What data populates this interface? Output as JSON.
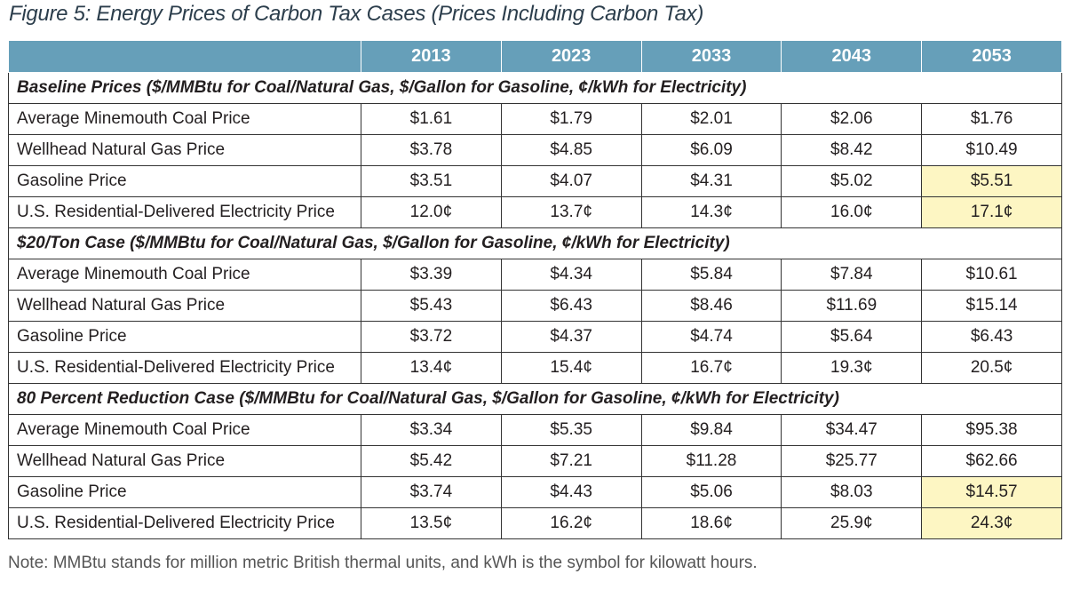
{
  "title": "Figure 5: Energy Prices of Carbon Tax Cases (Prices Including Carbon Tax)",
  "years": [
    "2013",
    "2023",
    "2033",
    "2043",
    "2053"
  ],
  "sections": [
    {
      "heading": "Baseline Prices ($/MMBtu for Coal/Natural Gas, $/Gallon for Gasoline, ¢/kWh for Electricity)",
      "rows": [
        {
          "label": "Average Minemouth Coal Price",
          "values": [
            "$1.61",
            "$1.79",
            "$2.01",
            "$2.06",
            "$1.76"
          ],
          "highlight_last": false
        },
        {
          "label": "Wellhead Natural Gas Price",
          "values": [
            "$3.78",
            "$4.85",
            "$6.09",
            "$8.42",
            "$10.49"
          ],
          "highlight_last": false
        },
        {
          "label": "Gasoline Price",
          "values": [
            "$3.51",
            "$4.07",
            "$4.31",
            "$5.02",
            "$5.51"
          ],
          "highlight_last": true
        },
        {
          "label": "U.S. Residential-Delivered Electricity Price",
          "values": [
            "12.0¢",
            "13.7¢",
            "14.3¢",
            "16.0¢",
            "17.1¢"
          ],
          "highlight_last": true
        }
      ]
    },
    {
      "heading": "$20/Ton Case ($/MMBtu for Coal/Natural Gas, $/Gallon for Gasoline, ¢/kWh for Electricity)",
      "rows": [
        {
          "label": "Average Minemouth Coal Price",
          "values": [
            "$3.39",
            "$4.34",
            "$5.84",
            "$7.84",
            "$10.61"
          ],
          "highlight_last": false
        },
        {
          "label": "Wellhead Natural Gas Price",
          "values": [
            "$5.43",
            "$6.43",
            "$8.46",
            "$11.69",
            "$15.14"
          ],
          "highlight_last": false
        },
        {
          "label": "Gasoline Price",
          "values": [
            "$3.72",
            "$4.37",
            "$4.74",
            "$5.64",
            "$6.43"
          ],
          "highlight_last": false
        },
        {
          "label": "U.S. Residential-Delivered Electricity Price",
          "values": [
            "13.4¢",
            "15.4¢",
            "16.7¢",
            "19.3¢",
            "20.5¢"
          ],
          "highlight_last": false
        }
      ]
    },
    {
      "heading": "80 Percent Reduction Case ($/MMBtu for Coal/Natural Gas, $/Gallon for Gasoline, ¢/kWh for Electricity)",
      "rows": [
        {
          "label": "Average Minemouth Coal Price",
          "values": [
            "$3.34",
            "$5.35",
            "$9.84",
            "$34.47",
            "$95.38"
          ],
          "highlight_last": false
        },
        {
          "label": "Wellhead Natural Gas Price",
          "values": [
            "$5.42",
            "$7.21",
            "$11.28",
            "$25.77",
            "$62.66"
          ],
          "highlight_last": false
        },
        {
          "label": "Gasoline Price",
          "values": [
            "$3.74",
            "$4.43",
            "$5.06",
            "$8.03",
            "$14.57"
          ],
          "highlight_last": true
        },
        {
          "label": "U.S. Residential-Delivered Electricity Price",
          "values": [
            "13.5¢",
            "16.2¢",
            "18.6¢",
            "25.9¢",
            "24.3¢"
          ],
          "highlight_last": true
        }
      ]
    }
  ],
  "note": "Note: MMBtu stands for million metric British thermal units, and kWh is the symbol for kilowatt hours.",
  "colors": {
    "header_bg": "#669fb9",
    "highlight_bg": "#fdf6c3",
    "title_color": "#2c3e4c"
  }
}
